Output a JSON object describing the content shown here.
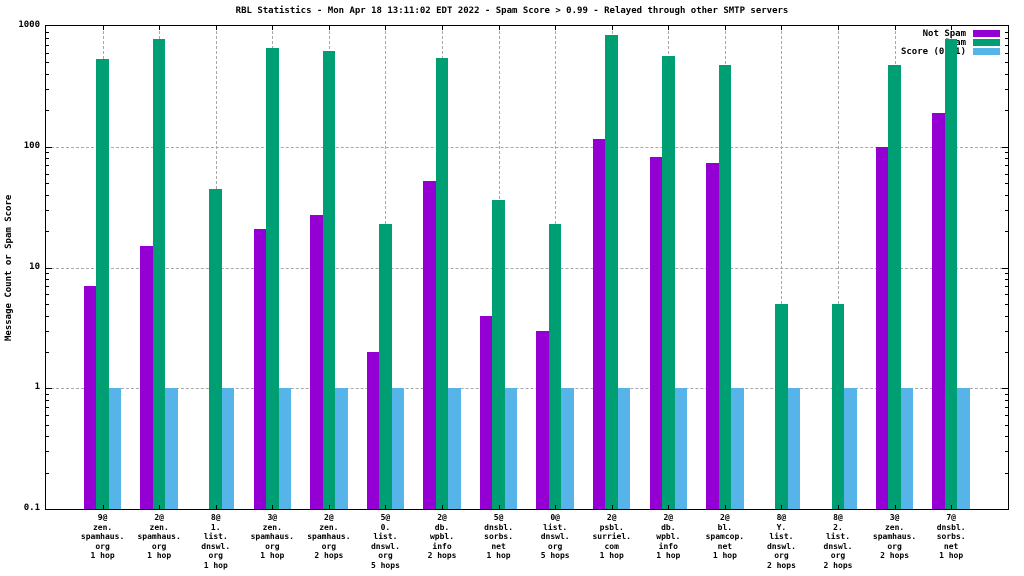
{
  "chart_data": {
    "type": "bar",
    "title": "RBL Statistics - Mon Apr 18 13:11:02 EDT 2022 - Spam Score > 0.99 - Relayed through other SMTP servers",
    "ylabel": "Message Count or Spam Score",
    "xlabel": "",
    "y_scale": "log",
    "ylim": [
      0.1,
      1000
    ],
    "y_ticks": [
      1000,
      100,
      10,
      1,
      0.1
    ],
    "grid": true,
    "legend_position": "top-right-inside",
    "frame_color": "#000000",
    "grid_color": "#a8a8a8",
    "background_color": "#ffffff",
    "categories": [
      [
        "9@",
        "zen.",
        "spamhaus.",
        "org",
        "1 hop"
      ],
      [
        "2@",
        "zen.",
        "spamhaus.",
        "org",
        "1 hop"
      ],
      [
        "8@",
        "1.",
        "list.",
        "dnswl.",
        "org",
        "1 hop"
      ],
      [
        "3@",
        "zen.",
        "spamhaus.",
        "org",
        "1 hop"
      ],
      [
        "2@",
        "zen.",
        "spamhaus.",
        "org",
        "2 hops"
      ],
      [
        "5@",
        "0.",
        "list.",
        "dnswl.",
        "org",
        "5 hops"
      ],
      [
        "2@",
        "db.",
        "wpbl.",
        "info",
        "2 hops"
      ],
      [
        "5@",
        "dnsbl.",
        "sorbs.",
        "net",
        "1 hop"
      ],
      [
        "0@",
        "list.",
        "dnswl.",
        "org",
        "5 hops"
      ],
      [
        "2@",
        "psbl.",
        "surriel.",
        "com",
        "1 hop"
      ],
      [
        "2@",
        "db.",
        "wpbl.",
        "info",
        "1 hop"
      ],
      [
        "2@",
        "bl.",
        "spamcop.",
        "net",
        "1 hop"
      ],
      [
        "8@",
        "Y.",
        "list.",
        "dnswl.",
        "org",
        "2 hops"
      ],
      [
        "8@",
        "2.",
        "list.",
        "dnswl.",
        "org",
        "2 hops"
      ],
      [
        "3@",
        "zen.",
        "spamhaus.",
        "org",
        "2 hops"
      ],
      [
        "7@",
        "dnsbl.",
        "sorbs.",
        "net",
        "1 hop"
      ]
    ],
    "series": [
      {
        "name": "Not Spam",
        "color": "#9400d3",
        "values": [
          7,
          15,
          null,
          21,
          27,
          2,
          52,
          4,
          3,
          115,
          82,
          73,
          null,
          null,
          100,
          190
        ]
      },
      {
        "name": "Spam",
        "color": "#009e73",
        "values": [
          530,
          780,
          45,
          660,
          620,
          23,
          540,
          36,
          23,
          850,
          560,
          480,
          5,
          5,
          480,
          780
        ]
      },
      {
        "name": "Score (0..1)",
        "color": "#56b4e9",
        "values": [
          1,
          1,
          1,
          1,
          1,
          1,
          1,
          1,
          1,
          1,
          1,
          1,
          1,
          1,
          1,
          1
        ]
      }
    ]
  }
}
